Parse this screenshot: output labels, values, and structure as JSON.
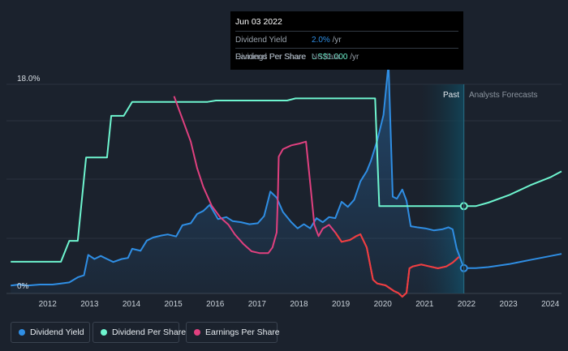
{
  "tooltip": {
    "date": "Jun 03 2022",
    "rows": [
      {
        "label": "Dividend Yield",
        "value": "2.0%",
        "unit": " /yr",
        "color": "#2f8ee4"
      },
      {
        "label": "Dividend Per Share",
        "value": "US$1.000",
        "unit": " /yr",
        "color": "#6ef5cf"
      },
      {
        "label": "Earnings Per Share",
        "value": "No data",
        "unit": "",
        "color": "#6b7480"
      }
    ]
  },
  "sections": {
    "past": "Past",
    "forecast": "Analysts Forecasts"
  },
  "legend": [
    {
      "label": "Dividend Yield",
      "color": "#2f8ee4"
    },
    {
      "label": "Dividend Per Share",
      "color": "#6ef5cf"
    },
    {
      "label": "Earnings Per Share",
      "color": "#e0407f"
    }
  ],
  "chart_data": {
    "type": "line",
    "y_top_label": "18.0%",
    "y_bottom_label": "0%",
    "x_ticks": [
      "2012",
      "2013",
      "2014",
      "2015",
      "2016",
      "2017",
      "2018",
      "2019",
      "2020",
      "2021",
      "2022",
      "2023",
      "2024"
    ],
    "xlim": [
      2011.5,
      2024.75
    ],
    "today": 2022.42,
    "past_shade_start": 2021.4,
    "series": [
      {
        "name": "Dividend Yield",
        "color": "#2f8ee4",
        "units": "% yield",
        "points": [
          [
            2011.6,
            0.3
          ],
          [
            2011.8,
            0.4
          ],
          [
            2012.0,
            0.3
          ],
          [
            2012.3,
            0.4
          ],
          [
            2012.6,
            0.4
          ],
          [
            2012.8,
            0.5
          ],
          [
            2013.0,
            0.6
          ],
          [
            2013.2,
            1.1
          ],
          [
            2013.35,
            1.3
          ],
          [
            2013.45,
            3.3
          ],
          [
            2013.6,
            2.9
          ],
          [
            2013.75,
            3.2
          ],
          [
            2013.9,
            2.9
          ],
          [
            2014.05,
            2.6
          ],
          [
            2014.25,
            2.9
          ],
          [
            2014.4,
            3.0
          ],
          [
            2014.5,
            3.9
          ],
          [
            2014.7,
            3.7
          ],
          [
            2014.85,
            4.7
          ],
          [
            2015.0,
            5.0
          ],
          [
            2015.2,
            5.2
          ],
          [
            2015.35,
            5.3
          ],
          [
            2015.55,
            5.1
          ],
          [
            2015.7,
            6.2
          ],
          [
            2015.9,
            6.4
          ],
          [
            2016.05,
            7.3
          ],
          [
            2016.2,
            7.6
          ],
          [
            2016.35,
            8.2
          ],
          [
            2016.55,
            6.8
          ],
          [
            2016.75,
            7.0
          ],
          [
            2016.9,
            6.6
          ],
          [
            2017.1,
            6.5
          ],
          [
            2017.3,
            6.3
          ],
          [
            2017.5,
            6.4
          ],
          [
            2017.65,
            7.1
          ],
          [
            2017.8,
            9.5
          ],
          [
            2017.95,
            8.9
          ],
          [
            2018.1,
            7.5
          ],
          [
            2018.3,
            6.5
          ],
          [
            2018.45,
            5.9
          ],
          [
            2018.6,
            6.3
          ],
          [
            2018.75,
            5.9
          ],
          [
            2018.9,
            6.9
          ],
          [
            2019.05,
            6.5
          ],
          [
            2019.2,
            7.0
          ],
          [
            2019.35,
            6.9
          ],
          [
            2019.5,
            8.5
          ],
          [
            2019.65,
            8.0
          ],
          [
            2019.8,
            8.7
          ],
          [
            2019.95,
            10.5
          ],
          [
            2020.1,
            11.5
          ],
          [
            2020.2,
            12.5
          ],
          [
            2020.35,
            14.5
          ],
          [
            2020.5,
            17.0
          ],
          [
            2020.62,
            22.0
          ],
          [
            2020.72,
            9.0
          ],
          [
            2020.82,
            8.8
          ],
          [
            2020.95,
            9.7
          ],
          [
            2021.05,
            8.6
          ],
          [
            2021.15,
            6.1
          ],
          [
            2021.3,
            6.0
          ],
          [
            2021.5,
            5.9
          ],
          [
            2021.7,
            5.7
          ],
          [
            2021.9,
            5.8
          ],
          [
            2022.05,
            6.0
          ],
          [
            2022.15,
            5.8
          ],
          [
            2022.25,
            3.9
          ],
          [
            2022.42,
            2.0
          ],
          [
            2022.7,
            2.0
          ],
          [
            2023.0,
            2.1
          ],
          [
            2023.5,
            2.4
          ],
          [
            2024.0,
            2.8
          ],
          [
            2024.5,
            3.2
          ],
          [
            2024.75,
            3.4
          ]
        ]
      },
      {
        "name": "Dividend Per Share",
        "color": "#6ef5cf",
        "units": "US$ per share",
        "points": [
          [
            2011.6,
            0.2
          ],
          [
            2012.8,
            0.2
          ],
          [
            2013.0,
            0.5
          ],
          [
            2013.2,
            0.5
          ],
          [
            2013.4,
            1.7
          ],
          [
            2013.6,
            1.7
          ],
          [
            2013.9,
            1.7
          ],
          [
            2014.0,
            2.3
          ],
          [
            2014.3,
            2.3
          ],
          [
            2014.5,
            2.5
          ],
          [
            2015.0,
            2.5
          ],
          [
            2015.6,
            2.5
          ],
          [
            2015.9,
            2.5
          ],
          [
            2016.3,
            2.5
          ],
          [
            2016.5,
            2.52
          ],
          [
            2016.9,
            2.52
          ],
          [
            2017.5,
            2.52
          ],
          [
            2017.9,
            2.52
          ],
          [
            2018.2,
            2.52
          ],
          [
            2018.4,
            2.55
          ],
          [
            2018.9,
            2.55
          ],
          [
            2019.4,
            2.55
          ],
          [
            2019.9,
            2.55
          ],
          [
            2020.2,
            2.55
          ],
          [
            2020.3,
            2.55
          ],
          [
            2020.4,
            1.0
          ],
          [
            2020.7,
            1.0
          ],
          [
            2021.0,
            1.0
          ],
          [
            2021.5,
            1.0
          ],
          [
            2022.0,
            1.0
          ],
          [
            2022.42,
            1.0
          ],
          [
            2022.7,
            1.0
          ],
          [
            2023.0,
            1.05
          ],
          [
            2023.5,
            1.16
          ],
          [
            2024.0,
            1.3
          ],
          [
            2024.5,
            1.42
          ],
          [
            2024.75,
            1.5
          ]
        ]
      },
      {
        "name": "Earnings Per Share",
        "color": "#e0407f",
        "units": "US$ per share",
        "points": [
          [
            2015.5,
            5.1
          ],
          [
            2015.7,
            4.5
          ],
          [
            2015.9,
            3.9
          ],
          [
            2016.05,
            3.2
          ],
          [
            2016.2,
            2.7
          ],
          [
            2016.4,
            2.2
          ],
          [
            2016.6,
            1.9
          ],
          [
            2016.8,
            1.7
          ],
          [
            2016.95,
            1.45
          ],
          [
            2017.15,
            1.2
          ],
          [
            2017.35,
            1.0
          ],
          [
            2017.55,
            0.95
          ],
          [
            2017.75,
            0.95
          ],
          [
            2017.85,
            1.1
          ],
          [
            2017.95,
            1.5
          ],
          [
            2017.98,
            2.5
          ],
          [
            2018.0,
            3.5
          ],
          [
            2018.1,
            3.7
          ],
          [
            2018.3,
            3.8
          ],
          [
            2018.5,
            3.85
          ],
          [
            2018.65,
            3.9
          ],
          [
            2018.75,
            2.8
          ],
          [
            2018.85,
            1.7
          ],
          [
            2018.95,
            1.4
          ],
          [
            2019.05,
            1.6
          ],
          [
            2019.2,
            1.7
          ],
          [
            2019.35,
            1.5
          ],
          [
            2019.5,
            1.25
          ],
          [
            2019.7,
            1.3
          ],
          [
            2019.85,
            1.4
          ],
          [
            2019.95,
            1.45
          ],
          [
            2020.1,
            1.1
          ],
          [
            2020.25,
            0.25
          ],
          [
            2020.35,
            0.15
          ],
          [
            2020.55,
            0.1
          ],
          [
            2020.75,
            -0.05
          ],
          [
            2020.85,
            -0.1
          ],
          [
            2020.95,
            -0.2
          ],
          [
            2021.05,
            -0.1
          ],
          [
            2021.12,
            0.55
          ],
          [
            2021.2,
            0.6
          ],
          [
            2021.4,
            0.65
          ],
          [
            2021.6,
            0.6
          ],
          [
            2021.8,
            0.55
          ],
          [
            2022.0,
            0.6
          ],
          [
            2022.15,
            0.7
          ],
          [
            2022.3,
            0.85
          ]
        ]
      }
    ]
  }
}
